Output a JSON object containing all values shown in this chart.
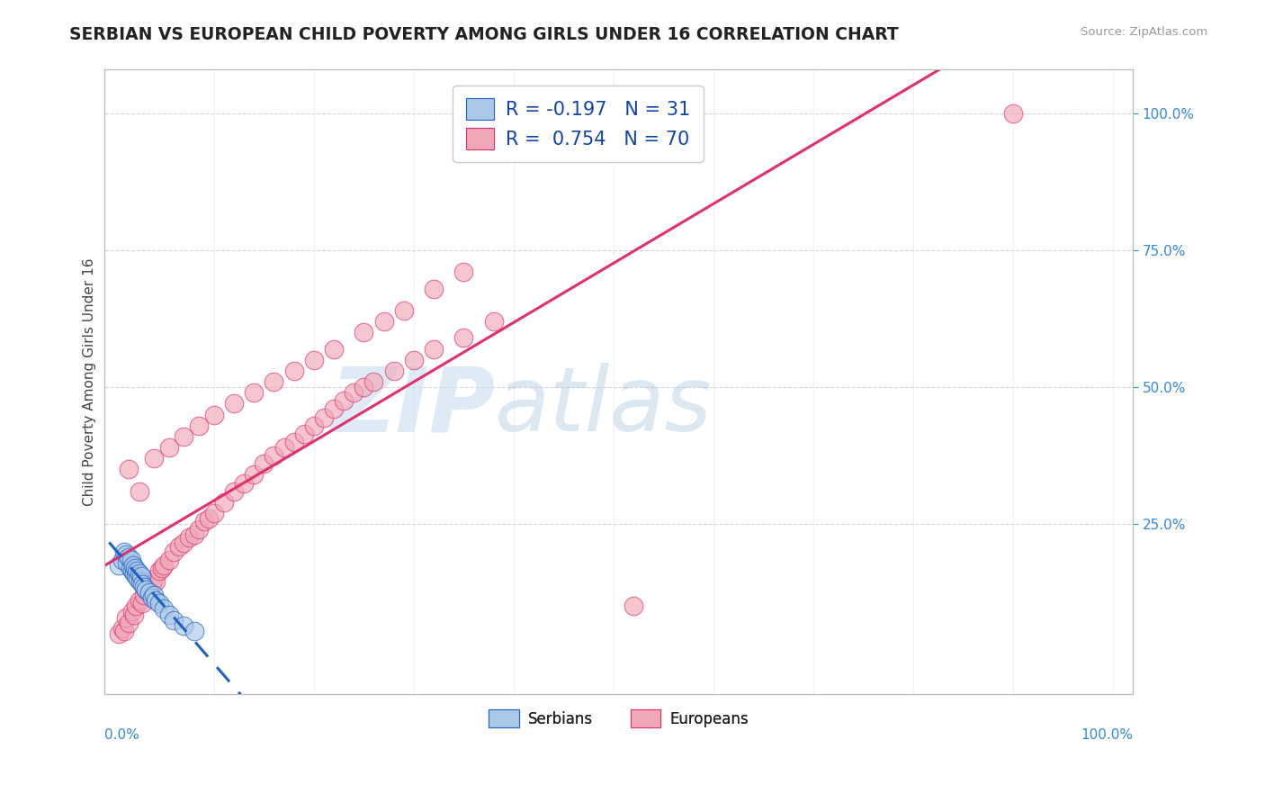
{
  "title": "SERBIAN VS EUROPEAN CHILD POVERTY AMONG GIRLS UNDER 16 CORRELATION CHART",
  "source": "Source: ZipAtlas.com",
  "ylabel": "Child Poverty Among Girls Under 16",
  "legend_label1": "Serbians",
  "legend_label2": "Europeans",
  "R1": -0.197,
  "N1": 31,
  "R2": 0.754,
  "N2": 70,
  "color_serbian": "#aac8e8",
  "color_european": "#f0a8b8",
  "color_serbian_line": "#2060c0",
  "color_european_line": "#e03070",
  "watermark_zip": "ZIP",
  "watermark_atlas": "atlas",
  "bg_color": "#ffffff",
  "grid_color": "#cccccc",
  "serbian_x": [
    0.005,
    0.008,
    0.01,
    0.012,
    0.013,
    0.015,
    0.016,
    0.017,
    0.018,
    0.019,
    0.02,
    0.021,
    0.022,
    0.023,
    0.024,
    0.025,
    0.026,
    0.027,
    0.028,
    0.03,
    0.032,
    0.035,
    0.038,
    0.04,
    0.042,
    0.045,
    0.05,
    0.055,
    0.06,
    0.07,
    0.08
  ],
  "serbian_y": [
    0.175,
    0.185,
    0.2,
    0.195,
    0.18,
    0.19,
    0.17,
    0.185,
    0.165,
    0.175,
    0.16,
    0.17,
    0.155,
    0.165,
    0.15,
    0.16,
    0.145,
    0.155,
    0.14,
    0.135,
    0.13,
    0.125,
    0.115,
    0.12,
    0.11,
    0.105,
    0.095,
    0.085,
    0.075,
    0.065,
    0.055
  ],
  "european_x": [
    0.005,
    0.008,
    0.01,
    0.012,
    0.015,
    0.018,
    0.02,
    0.022,
    0.025,
    0.028,
    0.03,
    0.032,
    0.035,
    0.038,
    0.04,
    0.042,
    0.045,
    0.048,
    0.05,
    0.055,
    0.06,
    0.065,
    0.07,
    0.075,
    0.08,
    0.085,
    0.09,
    0.095,
    0.1,
    0.11,
    0.12,
    0.13,
    0.14,
    0.15,
    0.16,
    0.17,
    0.18,
    0.19,
    0.2,
    0.21,
    0.22,
    0.23,
    0.24,
    0.25,
    0.26,
    0.28,
    0.3,
    0.32,
    0.35,
    0.38,
    0.015,
    0.025,
    0.04,
    0.055,
    0.07,
    0.085,
    0.1,
    0.12,
    0.14,
    0.16,
    0.18,
    0.2,
    0.22,
    0.25,
    0.27,
    0.29,
    0.32,
    0.35,
    0.52,
    0.9
  ],
  "european_y": [
    0.05,
    0.06,
    0.055,
    0.08,
    0.07,
    0.09,
    0.085,
    0.1,
    0.11,
    0.105,
    0.12,
    0.13,
    0.125,
    0.14,
    0.15,
    0.145,
    0.165,
    0.17,
    0.175,
    0.185,
    0.2,
    0.21,
    0.215,
    0.225,
    0.23,
    0.24,
    0.255,
    0.26,
    0.27,
    0.29,
    0.31,
    0.325,
    0.34,
    0.36,
    0.375,
    0.39,
    0.4,
    0.415,
    0.43,
    0.445,
    0.46,
    0.475,
    0.49,
    0.5,
    0.51,
    0.53,
    0.55,
    0.57,
    0.59,
    0.62,
    0.35,
    0.31,
    0.37,
    0.39,
    0.41,
    0.43,
    0.45,
    0.47,
    0.49,
    0.51,
    0.53,
    0.55,
    0.57,
    0.6,
    0.62,
    0.64,
    0.68,
    0.71,
    0.1,
    1.0
  ],
  "eu_line_x0": -0.01,
  "eu_line_x1": 1.01,
  "sr_line_x0": -0.005,
  "sr_line_x1": 0.4,
  "xmin": -0.01,
  "xmax": 1.02,
  "ymin": -0.06,
  "ymax": 1.08
}
